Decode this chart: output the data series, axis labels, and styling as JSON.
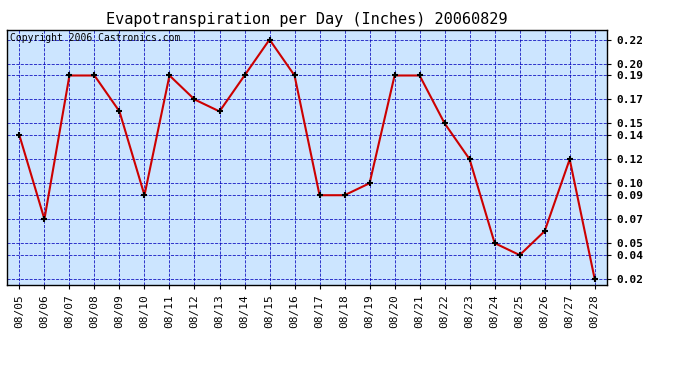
{
  "title": "Evapotranspiration per Day (Inches) 20060829",
  "copyright_text": "Copyright 2006 Castronics.com",
  "dates": [
    "08/05",
    "08/06",
    "08/07",
    "08/08",
    "08/09",
    "08/10",
    "08/11",
    "08/12",
    "08/13",
    "08/14",
    "08/15",
    "08/16",
    "08/17",
    "08/18",
    "08/19",
    "08/20",
    "08/21",
    "08/22",
    "08/23",
    "08/24",
    "08/25",
    "08/26",
    "08/27",
    "08/28"
  ],
  "values": [
    0.14,
    0.07,
    0.19,
    0.19,
    0.16,
    0.09,
    0.19,
    0.17,
    0.16,
    0.19,
    0.22,
    0.19,
    0.09,
    0.09,
    0.1,
    0.19,
    0.19,
    0.15,
    0.12,
    0.05,
    0.04,
    0.06,
    0.12,
    0.02
  ],
  "line_color": "#cc0000",
  "marker_color": "#000000",
  "marker_size": 5,
  "line_width": 1.5,
  "background_color": "#ffffff",
  "plot_bg_color": "#cce5ff",
  "grid_color": "#0000bb",
  "title_fontsize": 11,
  "copyright_fontsize": 7,
  "tick_fontsize": 8,
  "ylim": [
    0.015,
    0.228
  ],
  "yticks": [
    0.02,
    0.04,
    0.05,
    0.07,
    0.09,
    0.1,
    0.12,
    0.14,
    0.15,
    0.17,
    0.19,
    0.2,
    0.22
  ]
}
